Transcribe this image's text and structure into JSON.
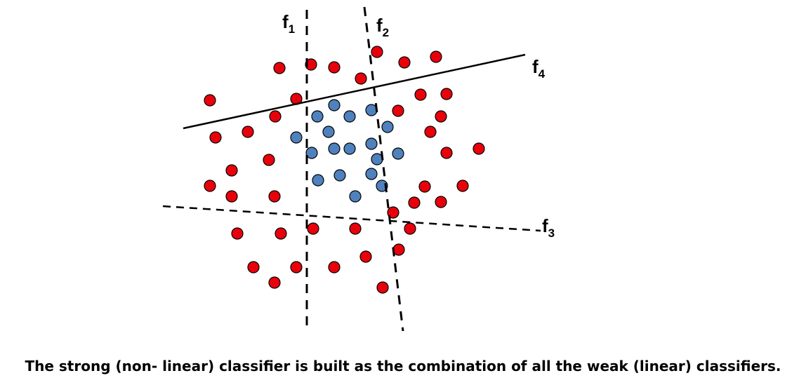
{
  "figure": {
    "caption": "The strong (non- linear) classifier is built as the combination of all  the weak (linear) classifiers.",
    "colors": {
      "positive": "#e8000b",
      "negative": "#4f81bd",
      "outline": "#000000",
      "line": "#000000"
    },
    "classifiers": [
      {
        "id": "f1",
        "base": "f",
        "sub": "1",
        "style": "dashed"
      },
      {
        "id": "f2",
        "base": "f",
        "sub": "2",
        "style": "dashed"
      },
      {
        "id": "f3",
        "base": "f",
        "sub": "3",
        "style": "dashed"
      },
      {
        "id": "f4",
        "base": "f",
        "sub": "4",
        "style": "solid"
      }
    ],
    "classes": [
      {
        "id": "red",
        "color": "#e8000b"
      },
      {
        "id": "blue",
        "color": "#4f81bd"
      }
    ]
  }
}
